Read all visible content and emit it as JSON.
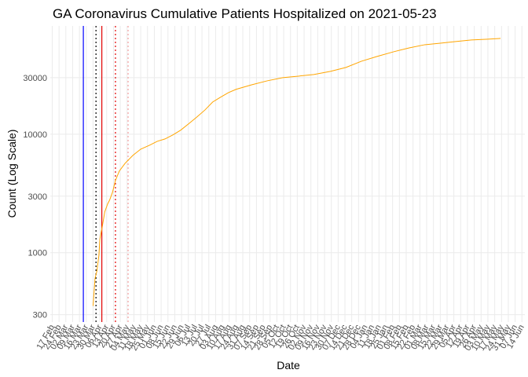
{
  "chart_data": {
    "type": "line",
    "title": "GA Coronavirus Cumulative Patients Hospitalized on 2021-05-23",
    "x_label": "Date",
    "y_label": "Count (Log Scale)",
    "log_y": true,
    "grid": true,
    "ylim": [
      260,
      82000
    ],
    "yticks": [
      300,
      1000,
      3000,
      10000,
      30000
    ],
    "xlim": [
      -2,
      486
    ],
    "xticks": [
      {
        "value": 0,
        "label": "17 Feb"
      },
      {
        "value": 7,
        "label": "24 Feb"
      },
      {
        "value": 14,
        "label": "02 Mar"
      },
      {
        "value": 21,
        "label": "09 Mar"
      },
      {
        "value": 28,
        "label": "16 Mar"
      },
      {
        "value": 35,
        "label": "23 Mar"
      },
      {
        "value": 42,
        "label": "30 Mar"
      },
      {
        "value": 49,
        "label": "06 Apr"
      },
      {
        "value": 56,
        "label": "13 Apr"
      },
      {
        "value": 63,
        "label": "20 Apr"
      },
      {
        "value": 70,
        "label": "27 Apr"
      },
      {
        "value": 77,
        "label": "04 May"
      },
      {
        "value": 84,
        "label": "11 May"
      },
      {
        "value": 91,
        "label": "18 May"
      },
      {
        "value": 98,
        "label": "25 May"
      },
      {
        "value": 105,
        "label": "01 Jun"
      },
      {
        "value": 112,
        "label": "08 Jun"
      },
      {
        "value": 119,
        "label": "15 Jun"
      },
      {
        "value": 126,
        "label": "22 Jun"
      },
      {
        "value": 133,
        "label": "29 Jun"
      },
      {
        "value": 140,
        "label": "06 Jul"
      },
      {
        "value": 147,
        "label": "13 Jul"
      },
      {
        "value": 154,
        "label": "20 Jul"
      },
      {
        "value": 161,
        "label": "27 Jul"
      },
      {
        "value": 168,
        "label": "03 Aug"
      },
      {
        "value": 175,
        "label": "10 Aug"
      },
      {
        "value": 182,
        "label": "17 Aug"
      },
      {
        "value": 189,
        "label": "24 Aug"
      },
      {
        "value": 196,
        "label": "31 Aug"
      },
      {
        "value": 203,
        "label": "07 Sep"
      },
      {
        "value": 210,
        "label": "14 Sep"
      },
      {
        "value": 217,
        "label": "21 Sep"
      },
      {
        "value": 224,
        "label": "28 Sep"
      },
      {
        "value": 231,
        "label": "05 Oct"
      },
      {
        "value": 238,
        "label": "12 Oct"
      },
      {
        "value": 245,
        "label": "19 Oct"
      },
      {
        "value": 252,
        "label": "26 Oct"
      },
      {
        "value": 259,
        "label": "02 Nov"
      },
      {
        "value": 266,
        "label": "09 Nov"
      },
      {
        "value": 273,
        "label": "16 Nov"
      },
      {
        "value": 280,
        "label": "23 Nov"
      },
      {
        "value": 287,
        "label": "30 Nov"
      },
      {
        "value": 294,
        "label": "07 Dec"
      },
      {
        "value": 301,
        "label": "14 Dec"
      },
      {
        "value": 308,
        "label": "21 Dec"
      },
      {
        "value": 315,
        "label": "28 Dec"
      },
      {
        "value": 322,
        "label": "04 Jan"
      },
      {
        "value": 329,
        "label": "11 Jan"
      },
      {
        "value": 336,
        "label": "18 Jan"
      },
      {
        "value": 343,
        "label": "25 Jan"
      },
      {
        "value": 350,
        "label": "01 Feb"
      },
      {
        "value": 357,
        "label": "08 Feb"
      },
      {
        "value": 364,
        "label": "15 Feb"
      },
      {
        "value": 371,
        "label": "22 Feb"
      },
      {
        "value": 378,
        "label": "01 Mar"
      },
      {
        "value": 385,
        "label": "08 Mar"
      },
      {
        "value": 392,
        "label": "15 Mar"
      },
      {
        "value": 399,
        "label": "22 Mar"
      },
      {
        "value": 406,
        "label": "29 Mar"
      },
      {
        "value": 413,
        "label": "05 Apr"
      },
      {
        "value": 420,
        "label": "12 Apr"
      },
      {
        "value": 427,
        "label": "19 Apr"
      },
      {
        "value": 434,
        "label": "26 Apr"
      },
      {
        "value": 441,
        "label": "03 May"
      },
      {
        "value": 448,
        "label": "10 May"
      },
      {
        "value": 455,
        "label": "17 May"
      },
      {
        "value": 462,
        "label": "24 May"
      },
      {
        "value": 469,
        "label": "31 May"
      },
      {
        "value": 476,
        "label": "07 Jun"
      },
      {
        "value": 483,
        "label": "14 Jun"
      }
    ],
    "vlines": [
      {
        "x": 32,
        "color": "#0000ff",
        "dashed": false
      },
      {
        "x": 45,
        "color": "#000000",
        "dashed": true
      },
      {
        "x": 51,
        "color": "#e00000",
        "dashed": false
      },
      {
        "x": 65,
        "color": "#e00000",
        "dashed": true
      },
      {
        "x": 78,
        "color": "#f4a0a0",
        "dashed": true
      }
    ],
    "series": [
      {
        "color": "#ffa500",
        "x": [
          42,
          44,
          46,
          48,
          49,
          52,
          54,
          57,
          59,
          62,
          65,
          69,
          75,
          83,
          91,
          100,
          108,
          116,
          124,
          132,
          140,
          148,
          157,
          165,
          173,
          181,
          189,
          205,
          221,
          237,
          253,
          269,
          286,
          302,
          318,
          334,
          351,
          367,
          383,
          399,
          415,
          431,
          448,
          461
        ],
        "values": [
          355,
          605,
          705,
          955,
          1300,
          1760,
          2210,
          2580,
          2780,
          3240,
          4070,
          4890,
          5690,
          6630,
          7480,
          8070,
          8710,
          9120,
          9860,
          10800,
          12200,
          13800,
          16000,
          18700,
          20500,
          22400,
          23900,
          26100,
          28200,
          30000,
          30900,
          31900,
          33900,
          36600,
          41300,
          45300,
          49600,
          53500,
          56900,
          58600,
          60500,
          62400,
          63400,
          64300
        ]
      }
    ]
  }
}
